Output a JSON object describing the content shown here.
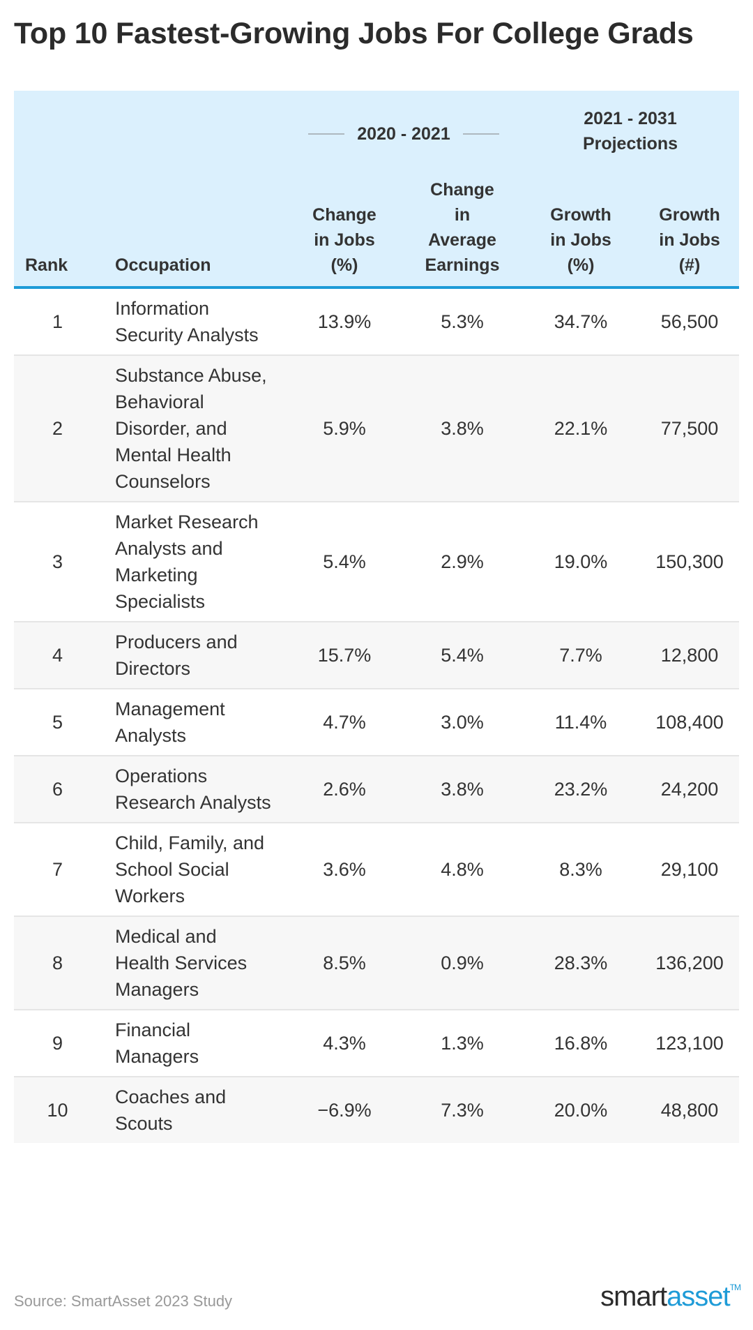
{
  "title": "Top 10 Fastest-Growing Jobs For College Grads",
  "chart_data": {
    "type": "table",
    "title": "Top 10 Fastest-Growing Jobs For College Grads",
    "column_groups": [
      {
        "label": "2020 - 2021",
        "columns": [
          "Change in Jobs (%)",
          "Change in Average Earnings"
        ]
      },
      {
        "label": "2021 - 2031 Projections",
        "columns": [
          "Growth in Jobs (%)",
          "Growth in Jobs (#)"
        ]
      }
    ],
    "columns": [
      "Rank",
      "Occupation",
      "Change in Jobs (%)",
      "Change in Average Earnings",
      "Growth in Jobs (%)",
      "Growth in Jobs (#)"
    ],
    "rows": [
      {
        "rank": "1",
        "occupation": "Information Security Analysts",
        "change_jobs_pct": "13.9%",
        "change_avg_earnings": "5.3%",
        "growth_jobs_pct": "34.7%",
        "growth_jobs_num": "56,500"
      },
      {
        "rank": "2",
        "occupation": "Substance Abuse, Behavioral Disorder, and Mental Health Counselors",
        "change_jobs_pct": "5.9%",
        "change_avg_earnings": "3.8%",
        "growth_jobs_pct": "22.1%",
        "growth_jobs_num": "77,500"
      },
      {
        "rank": "3",
        "occupation": "Market Research Analysts and Marketing Specialists",
        "change_jobs_pct": "5.4%",
        "change_avg_earnings": "2.9%",
        "growth_jobs_pct": "19.0%",
        "growth_jobs_num": "150,300"
      },
      {
        "rank": "4",
        "occupation": "Producers and Directors",
        "change_jobs_pct": "15.7%",
        "change_avg_earnings": "5.4%",
        "growth_jobs_pct": "7.7%",
        "growth_jobs_num": "12,800"
      },
      {
        "rank": "5",
        "occupation": "Management Analysts",
        "change_jobs_pct": "4.7%",
        "change_avg_earnings": "3.0%",
        "growth_jobs_pct": "11.4%",
        "growth_jobs_num": "108,400"
      },
      {
        "rank": "6",
        "occupation": "Operations Research Analysts",
        "change_jobs_pct": "2.6%",
        "change_avg_earnings": "3.8%",
        "growth_jobs_pct": "23.2%",
        "growth_jobs_num": "24,200"
      },
      {
        "rank": "7",
        "occupation": "Child, Family, and School Social Workers",
        "change_jobs_pct": "3.6%",
        "change_avg_earnings": "4.8%",
        "growth_jobs_pct": "8.3%",
        "growth_jobs_num": "29,100"
      },
      {
        "rank": "8",
        "occupation": "Medical and Health Services Managers",
        "change_jobs_pct": "8.5%",
        "change_avg_earnings": "0.9%",
        "growth_jobs_pct": "28.3%",
        "growth_jobs_num": "136,200"
      },
      {
        "rank": "9",
        "occupation": "Financial Managers",
        "change_jobs_pct": "4.3%",
        "change_avg_earnings": "1.3%",
        "growth_jobs_pct": "16.8%",
        "growth_jobs_num": "123,100"
      },
      {
        "rank": "10",
        "occupation": "Coaches and Scouts",
        "change_jobs_pct": "−6.9%",
        "change_avg_earnings": "7.3%",
        "growth_jobs_pct": "20.0%",
        "growth_jobs_num": "48,800"
      }
    ]
  },
  "header": {
    "group_1": "2020 - 2021",
    "group_2_line1": "2021 - 2031",
    "group_2_line2": "Projections",
    "rank": "Rank",
    "occupation": "Occupation",
    "change_jobs": [
      "Change",
      "in Jobs",
      "(%)"
    ],
    "change_earnings": [
      "Change",
      "in",
      "Average",
      "Earnings"
    ],
    "growth_pct": [
      "Growth",
      "in Jobs",
      "(%)"
    ],
    "growth_num": [
      "Growth",
      "in Jobs",
      "(#)"
    ]
  },
  "footer": {
    "source": "Source: SmartAsset 2023 Study",
    "logo_smart": "smart",
    "logo_asset": "asset",
    "logo_tm": "TM"
  },
  "colors": {
    "header_bg": "#dbf0fd",
    "accent": "#1e9bd7",
    "row_alt": "#f7f7f7",
    "text": "#333333"
  }
}
